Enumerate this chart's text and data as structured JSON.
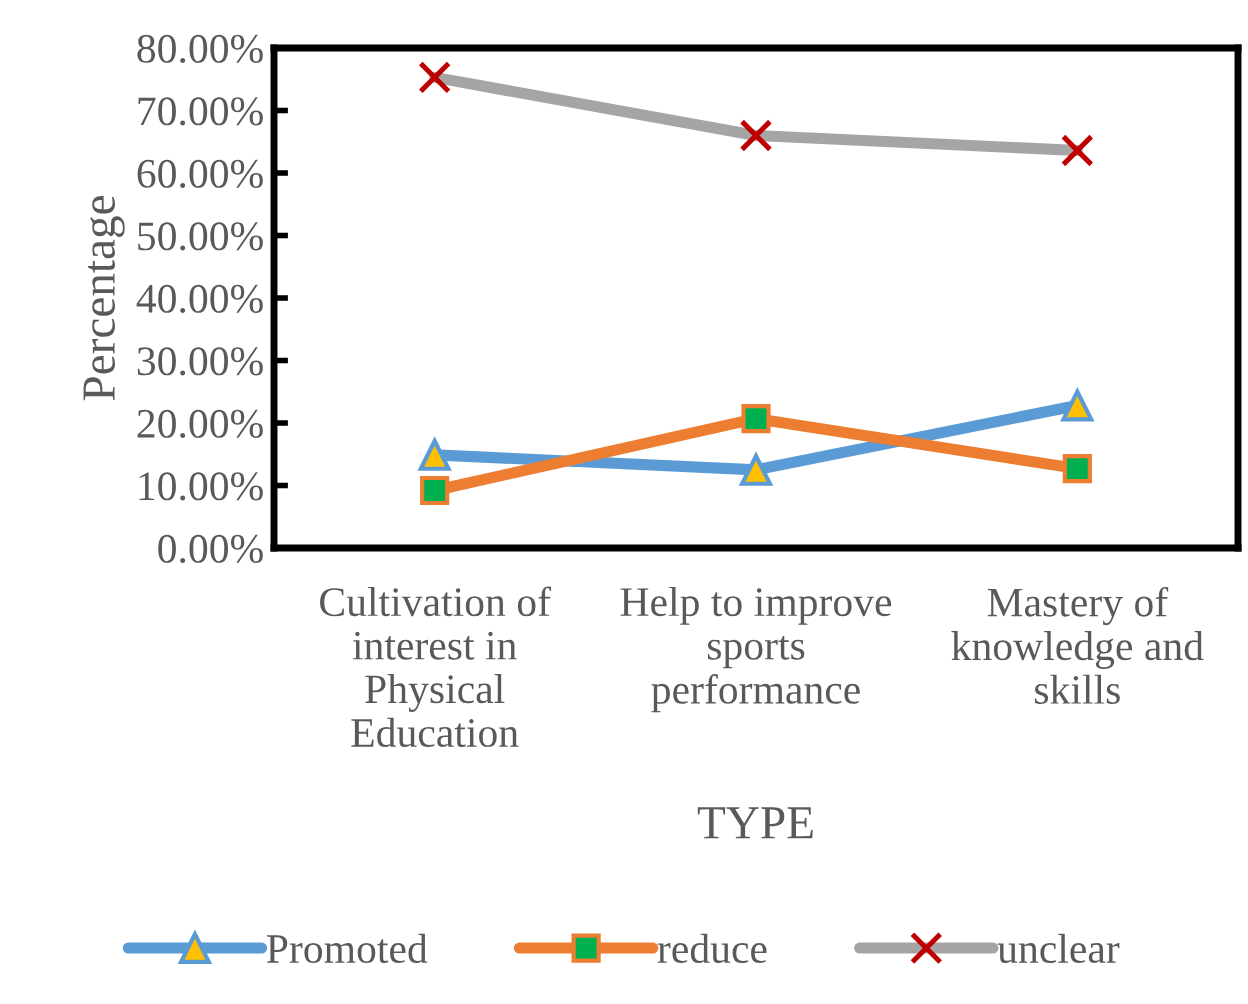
{
  "chart_data": {
    "type": "line",
    "xlabel": "TYPE",
    "ylabel": "Percentage",
    "categories": [
      "Cultivation of\ninterest in\nPhysical\nEducation",
      "Help to improve\nsports\nperformance",
      "Mastery of\nknowledge and\nskills"
    ],
    "series": [
      {
        "name": "Promoted",
        "color": "#5b9bd5",
        "marker": "triangle",
        "values": [
          14.9,
          12.5,
          22.8
        ]
      },
      {
        "name": "reduce",
        "color": "#ed7d31",
        "marker": "square",
        "values": [
          9.2,
          20.7,
          12.7
        ]
      },
      {
        "name": "unclear",
        "color": "#a5a5a5",
        "marker": "cross",
        "values": [
          75.3,
          66.0,
          63.6
        ]
      }
    ],
    "ylim": [
      0,
      80
    ],
    "yticks": [
      {
        "value": 0,
        "label": "0.00%"
      },
      {
        "value": 10,
        "label": "10.00%"
      },
      {
        "value": 20,
        "label": "20.00%"
      },
      {
        "value": 30,
        "label": "30.00%"
      },
      {
        "value": 40,
        "label": "40.00%"
      },
      {
        "value": 50,
        "label": "50.00%"
      },
      {
        "value": 60,
        "label": "60.00%"
      },
      {
        "value": 70,
        "label": "70.00%"
      },
      {
        "value": 80,
        "label": "80.00%"
      }
    ],
    "grid": false,
    "legend": "bottom",
    "line_style": "solid"
  }
}
